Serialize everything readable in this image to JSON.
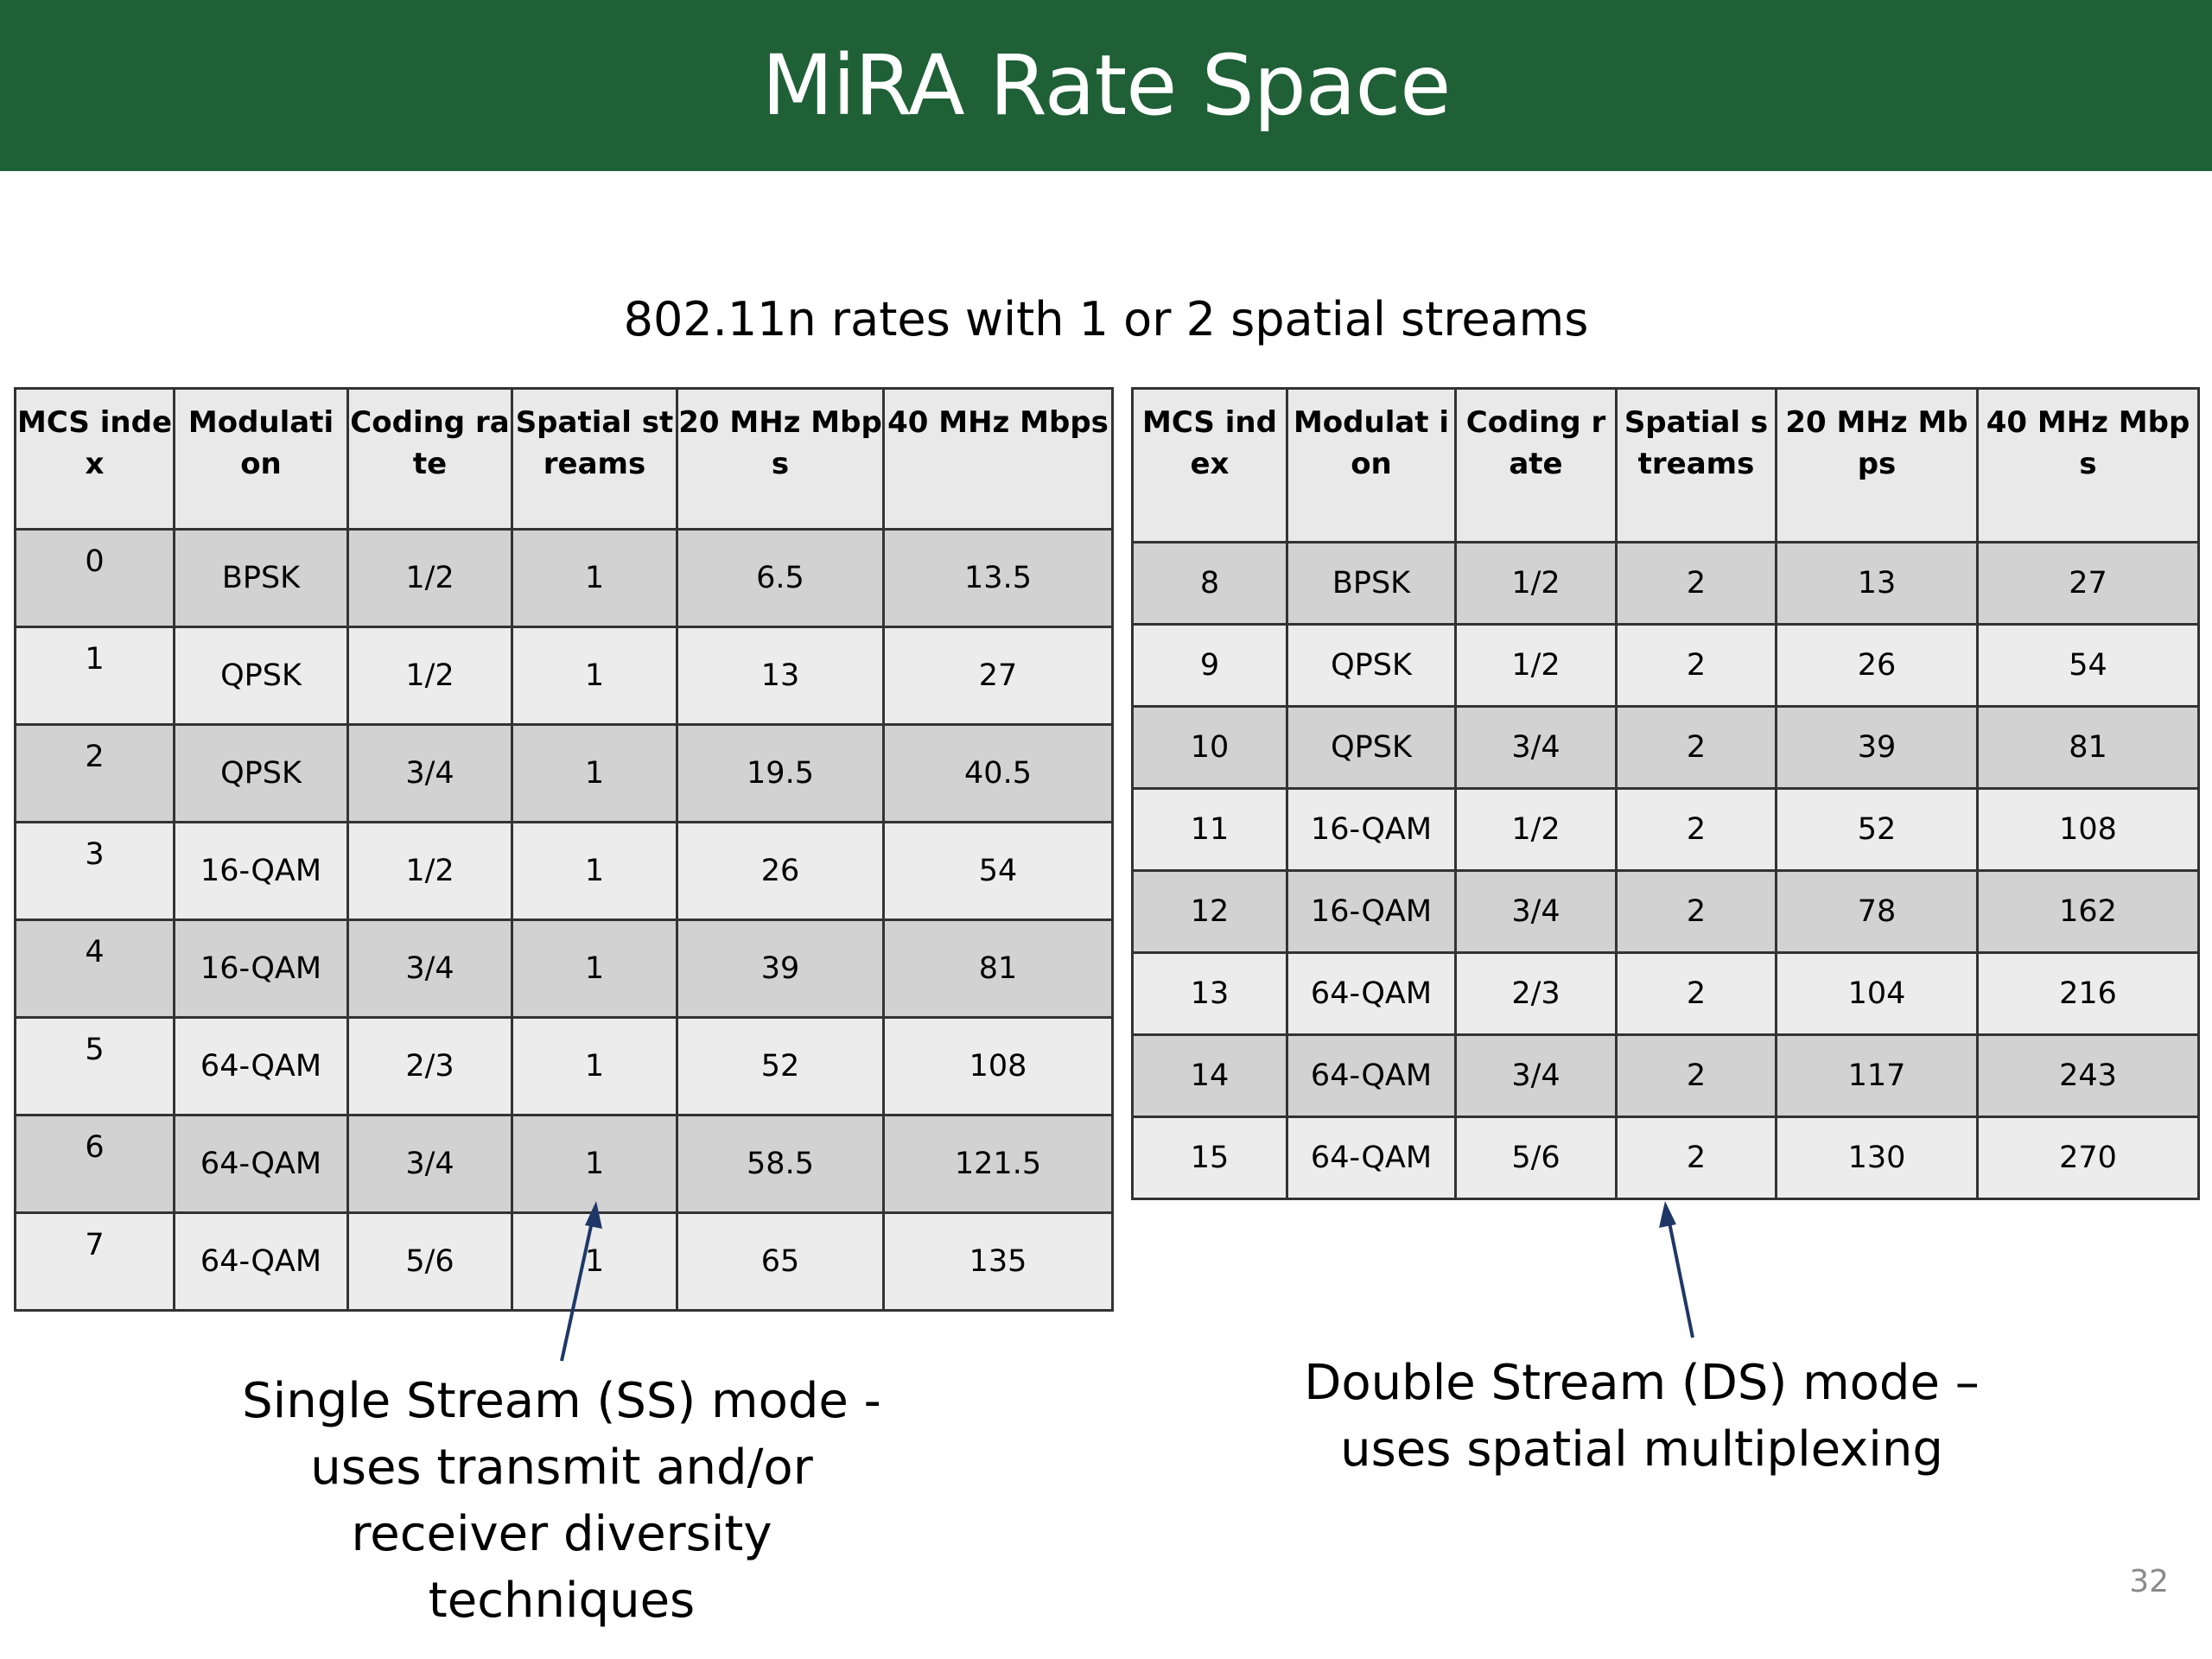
{
  "slide": {
    "title": "MiRA Rate Space",
    "subtitle": "802.11n rates with 1 or 2 spatial streams",
    "page_number": "32",
    "colors": {
      "title_bar": "#1f6037",
      "row_shade": "#d2d2d2",
      "row_light": "#ececec",
      "arrow": "#1f3768"
    }
  },
  "tables": {
    "single_stream": {
      "headers": [
        "MCS index",
        "Modulati on",
        "Coding rate",
        "Spatial streams",
        "20 MHz Mbps",
        "40 MHz Mbps"
      ],
      "rows": [
        [
          "0",
          "BPSK",
          "1/2",
          "1",
          "6.5",
          "13.5"
        ],
        [
          "1",
          "QPSK",
          "1/2",
          "1",
          "13",
          "27"
        ],
        [
          "2",
          "QPSK",
          "3/4",
          "1",
          "19.5",
          "40.5"
        ],
        [
          "3",
          "16-QAM",
          "1/2",
          "1",
          "26",
          "54"
        ],
        [
          "4",
          "16-QAM",
          "3/4",
          "1",
          "39",
          "81"
        ],
        [
          "5",
          "64-QAM",
          "2/3",
          "1",
          "52",
          "108"
        ],
        [
          "6",
          "64-QAM",
          "3/4",
          "1",
          "58.5",
          "121.5"
        ],
        [
          "7",
          "64-QAM",
          "5/6",
          "1",
          "65",
          "135"
        ]
      ]
    },
    "double_stream": {
      "headers": [
        "MCS index",
        "Modulat ion",
        "Coding rate",
        "Spatial streams",
        "20 MHz Mbps",
        "40 MHz Mbps"
      ],
      "rows": [
        [
          "8",
          "BPSK",
          "1/2",
          "2",
          "13",
          "27"
        ],
        [
          "9",
          "QPSK",
          "1/2",
          "2",
          "26",
          "54"
        ],
        [
          "10",
          "QPSK",
          "3/4",
          "2",
          "39",
          "81"
        ],
        [
          "11",
          "16-QAM",
          "1/2",
          "2",
          "52",
          "108"
        ],
        [
          "12",
          "16-QAM",
          "3/4",
          "2",
          "78",
          "162"
        ],
        [
          "13",
          "64-QAM",
          "2/3",
          "2",
          "104",
          "216"
        ],
        [
          "14",
          "64-QAM",
          "3/4",
          "2",
          "117",
          "243"
        ],
        [
          "15",
          "64-QAM",
          "5/6",
          "2",
          "130",
          "270"
        ]
      ]
    }
  },
  "captions": {
    "single_stream": [
      "Single Stream (SS) mode -",
      "uses transmit and/or",
      "receiver diversity",
      "techniques"
    ],
    "double_stream": [
      "Double Stream (DS) mode –",
      "uses spatial multiplexing"
    ]
  },
  "icons": {
    "single_stream_arrow": "arrow-up-icon",
    "double_stream_arrow": "arrow-up-icon"
  }
}
